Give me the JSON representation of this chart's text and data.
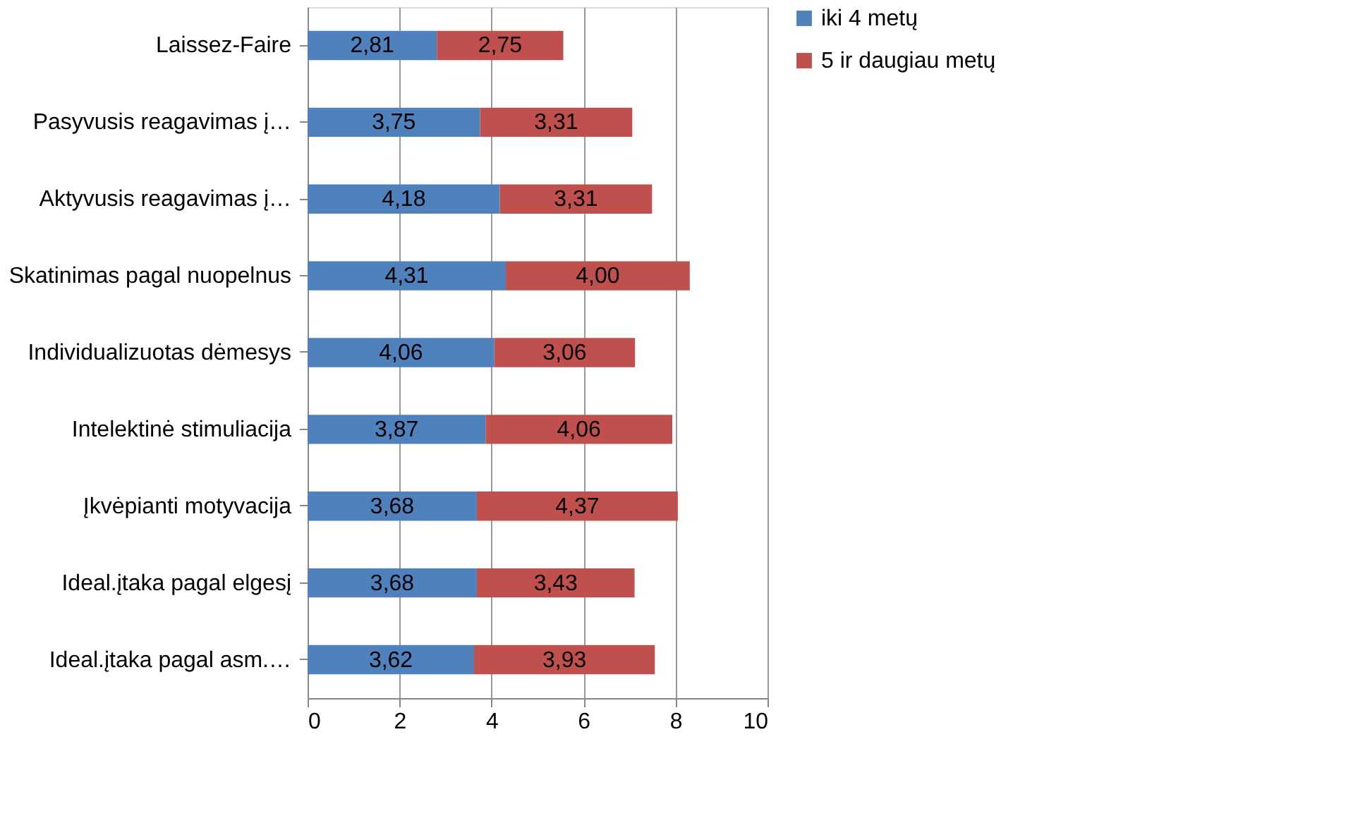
{
  "chart_data": {
    "type": "bar",
    "orientation": "horizontal",
    "stacked": true,
    "categories": [
      "Laissez-Faire",
      "Pasyvusis reagavimas į…",
      "Aktyvusis reagavimas į…",
      "Skatinimas pagal nuopelnus",
      "Individualizuotas dėmesys",
      "Intelektinė stimuliacija",
      "Įkvėpianti motyvacija",
      "Ideal.įtaka pagal elgesį",
      "Ideal.įtaka pagal asm.…"
    ],
    "series": [
      {
        "name": "iki 4 metų",
        "color": "#4f81bd",
        "values": [
          2.81,
          3.75,
          4.18,
          4.31,
          4.06,
          3.87,
          3.68,
          3.68,
          3.62
        ],
        "value_labels": [
          "2,81",
          "3,75",
          "4,18",
          "4,31",
          "4,06",
          "3,87",
          "3,68",
          "3,68",
          "3,62"
        ]
      },
      {
        "name": "5 ir daugiau metų",
        "color": "#c0504d",
        "values": [
          2.75,
          3.31,
          3.31,
          4.0,
          3.06,
          4.06,
          4.37,
          3.43,
          3.93
        ],
        "value_labels": [
          "2,75",
          "3,31",
          "3,31",
          "4,00",
          "3,06",
          "4,06",
          "4,37",
          "3,43",
          "3,93"
        ]
      }
    ],
    "xlim": [
      0,
      10
    ],
    "xticks": [
      0,
      2,
      4,
      6,
      8,
      10
    ],
    "grid": "x",
    "legend": "right"
  }
}
